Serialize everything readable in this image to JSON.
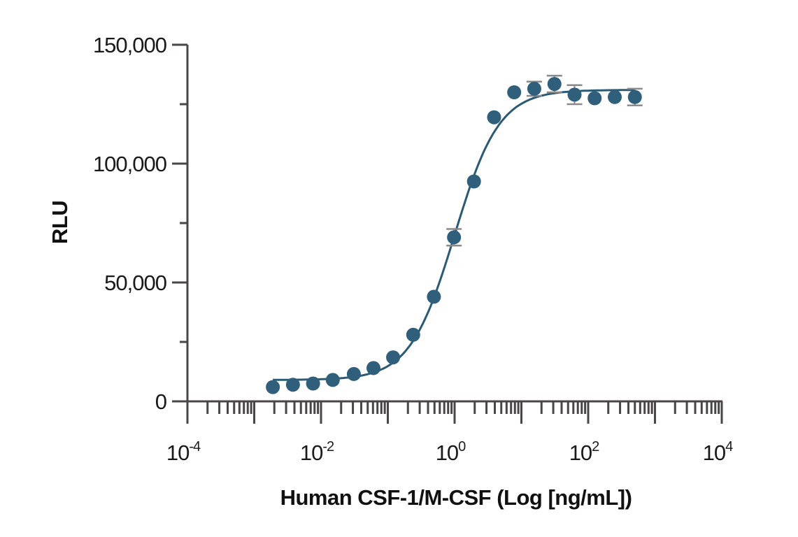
{
  "chart_data": {
    "type": "scatter",
    "title": "",
    "xlabel": "Human CSF-1/M-CSF (Log [ng/mL])",
    "ylabel": "RLU",
    "xscale": "log",
    "xlim": [
      0.0001,
      10000
    ],
    "ylim": [
      0,
      150000
    ],
    "grid": false,
    "x_ticks": [
      {
        "base": "10",
        "exp": "-4",
        "value": 0.0001
      },
      {
        "base": "10",
        "exp": "-2",
        "value": 0.01
      },
      {
        "base": "10",
        "exp": "0",
        "value": 1
      },
      {
        "base": "10",
        "exp": "2",
        "value": 100
      },
      {
        "base": "10",
        "exp": "4",
        "value": 10000
      }
    ],
    "y_ticks": [
      {
        "label": "0",
        "value": 0
      },
      {
        "label": "50,000",
        "value": 50000
      },
      {
        "label": "100,000",
        "value": 100000
      },
      {
        "label": "150,000",
        "value": 150000
      }
    ],
    "y_minor_ticks": [
      25000,
      75000,
      125000
    ],
    "series": [
      {
        "name": "Human CSF-1/M-CSF",
        "color": "#2f5f7a",
        "points": [
          {
            "x": 0.0019,
            "y": 6000
          },
          {
            "x": 0.0038,
            "y": 7000
          },
          {
            "x": 0.0076,
            "y": 7500
          },
          {
            "x": 0.015,
            "y": 9000
          },
          {
            "x": 0.031,
            "y": 11500
          },
          {
            "x": 0.061,
            "y": 14000
          },
          {
            "x": 0.12,
            "y": 18500
          },
          {
            "x": 0.24,
            "y": 28000
          },
          {
            "x": 0.49,
            "y": 44000
          },
          {
            "x": 0.98,
            "y": 69000,
            "err": 3500
          },
          {
            "x": 1.95,
            "y": 92500
          },
          {
            "x": 3.9,
            "y": 119500
          },
          {
            "x": 7.8,
            "y": 130000
          },
          {
            "x": 15.6,
            "y": 131500,
            "err": 3000
          },
          {
            "x": 31.25,
            "y": 133500,
            "err": 3500
          },
          {
            "x": 62.5,
            "y": 129000,
            "err": 4000
          },
          {
            "x": 125,
            "y": 127500
          },
          {
            "x": 250,
            "y": 128000
          },
          {
            "x": 500,
            "y": 128000,
            "err": 3500
          }
        ],
        "fit": {
          "model": "4PL",
          "bottom": 9000,
          "top": 131000,
          "ec50": 1.0,
          "hill": 1.3
        }
      }
    ]
  }
}
